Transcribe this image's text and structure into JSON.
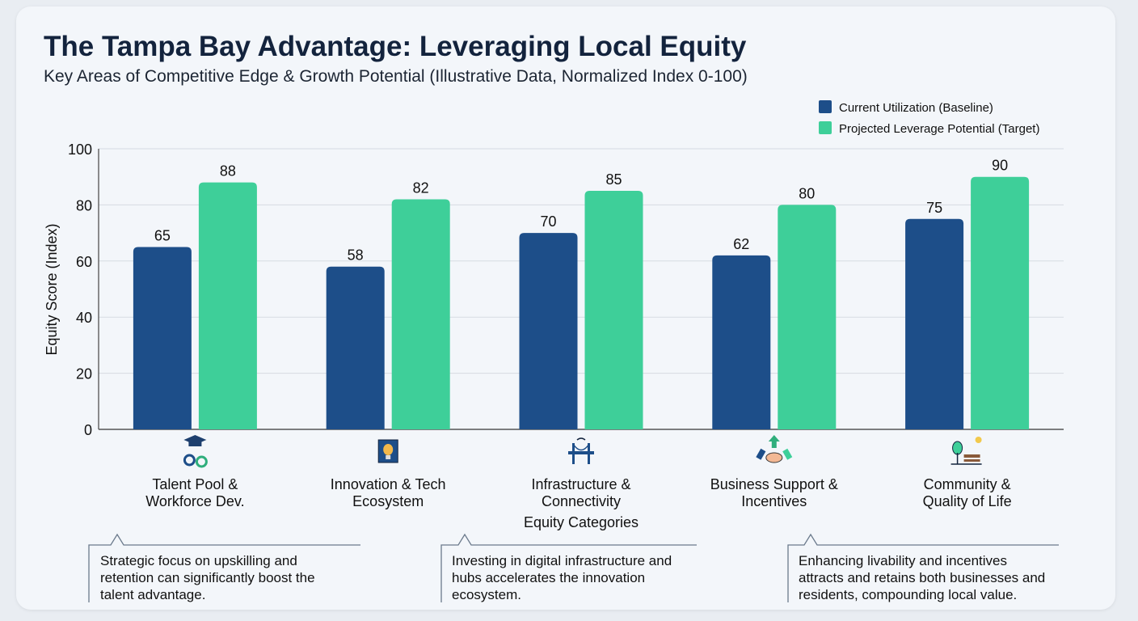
{
  "title": "The Tampa Bay Advantage: Leveraging Local Equity",
  "subtitle": "Key Areas of Competitive Edge & Growth Potential (Illustrative Data, Normalized Index 0-100)",
  "chart_data": {
    "type": "bar",
    "categories": [
      [
        "Talent Pool &",
        "Workforce Dev."
      ],
      [
        "Innovation & Tech",
        "Ecosystem"
      ],
      [
        "Infrastructure &",
        "Connectivity"
      ],
      [
        "Business Support &",
        "Incentives"
      ],
      [
        "Community &",
        "Quality of Life"
      ]
    ],
    "category_icons": [
      "graduation-cap-gears-icon",
      "lightbulb-chip-icon",
      "bridge-wifi-icon",
      "handshake-arrow-icon",
      "tree-bench-sun-icon"
    ],
    "series": [
      {
        "name": "Current Utilization (Baseline)",
        "color": "#1d4e89",
        "values": [
          65,
          58,
          70,
          62,
          75
        ]
      },
      {
        "name": "Projected Leverage Potential (Target)",
        "color": "#3ecf99",
        "values": [
          88,
          82,
          85,
          80,
          90
        ]
      }
    ],
    "xlabel": "Equity Categories",
    "ylabel": "Equity Score (Index)",
    "ylim": [
      0,
      100
    ],
    "yticks": [
      0,
      20,
      40,
      60,
      80,
      100
    ],
    "grid": true,
    "legend": "top-right"
  },
  "callouts": [
    {
      "lines": [
        "Strategic focus on upskilling and",
        "retention can significantly boost the",
        "talent advantage."
      ]
    },
    {
      "lines": [
        "Investing in digital infrastructure and",
        "hubs accelerates the innovation",
        "ecosystem."
      ]
    },
    {
      "lines": [
        "Enhancing livability and incentives",
        "attracts and retains both businesses and",
        "residents, compounding local value."
      ]
    }
  ]
}
